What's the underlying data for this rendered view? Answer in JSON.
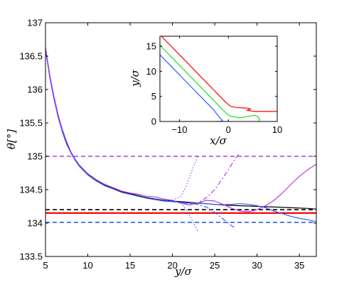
{
  "chart_data": [
    {
      "type": "line",
      "panel": "main",
      "xlabel": "y/σ",
      "ylabel": "θ[°]",
      "xlim": [
        5,
        37
      ],
      "ylim": [
        133.5,
        137
      ],
      "xticks": [
        "5",
        "10",
        "15",
        "20",
        "25",
        "30",
        "35"
      ],
      "yticks": [
        "133.5",
        "134",
        "134.5",
        "135",
        "135.5",
        "136",
        "136.5",
        "137"
      ],
      "grid": false,
      "hlines": [
        {
          "y": 135.0,
          "color": "#b23fe0",
          "dash": "dashed"
        },
        {
          "y": 134.2,
          "color": "#000000",
          "dash": "dashed"
        },
        {
          "y": 134.15,
          "color": "#ff0000",
          "dash": "solid"
        },
        {
          "y": 134.01,
          "color": "#2f5cff",
          "dash": "dashed"
        }
      ],
      "series": [
        {
          "color": "#000000",
          "dash": "solid",
          "x": [
            5,
            5.5,
            6,
            6.5,
            7,
            7.5,
            8,
            8.5,
            9,
            10,
            11,
            12,
            13,
            14,
            15,
            16,
            17,
            18,
            19,
            20,
            21,
            22,
            23,
            24,
            25,
            26,
            27,
            28,
            29,
            30,
            31,
            32,
            33,
            34,
            35,
            36,
            37
          ],
          "y": [
            136.62,
            136.2,
            135.88,
            135.6,
            135.38,
            135.2,
            135.06,
            134.95,
            134.86,
            134.73,
            134.64,
            134.57,
            134.52,
            134.47,
            134.44,
            134.41,
            134.38,
            134.36,
            134.34,
            134.33,
            134.32,
            134.31,
            134.3,
            134.29,
            134.28,
            134.27,
            134.265,
            134.26,
            134.255,
            134.25,
            134.245,
            134.24,
            134.235,
            134.23,
            134.225,
            134.22,
            134.21
          ]
        },
        {
          "color": "#2f5cff",
          "dash": "solid",
          "x": [
            5,
            5.5,
            6,
            6.5,
            7,
            7.5,
            8,
            8.5,
            9,
            10,
            11,
            12,
            13,
            14,
            15,
            16,
            17,
            18,
            19,
            20,
            21,
            22,
            23,
            24,
            25,
            26,
            27,
            28,
            29,
            30,
            31,
            32,
            33,
            34,
            35,
            36,
            37
          ],
          "y": [
            136.6,
            136.18,
            135.86,
            135.58,
            135.36,
            135.18,
            135.05,
            134.94,
            134.85,
            134.72,
            134.63,
            134.56,
            134.51,
            134.46,
            134.43,
            134.4,
            134.37,
            134.35,
            134.33,
            134.32,
            134.31,
            134.3,
            134.295,
            134.29,
            134.28,
            134.275,
            134.28,
            134.29,
            134.28,
            134.26,
            134.23,
            134.18,
            134.14,
            134.1,
            134.07,
            134.05,
            134.02
          ]
        },
        {
          "color": "#b23fe0",
          "dash": "solid",
          "x": [
            5,
            5.5,
            6,
            6.5,
            7,
            7.5,
            8,
            8.5,
            9,
            10,
            11,
            12,
            13,
            14,
            15,
            16,
            17,
            18,
            19,
            20,
            21,
            22,
            23,
            24,
            25,
            26,
            27,
            28,
            29,
            30,
            31,
            32,
            33,
            34,
            35,
            36,
            37
          ],
          "y": [
            136.64,
            136.22,
            135.9,
            135.62,
            135.4,
            135.22,
            135.07,
            134.96,
            134.87,
            134.74,
            134.65,
            134.58,
            134.53,
            134.48,
            134.45,
            134.43,
            134.4,
            134.39,
            134.36,
            134.34,
            134.3,
            134.27,
            134.3,
            134.34,
            134.33,
            134.28,
            134.22,
            134.18,
            134.17,
            134.2,
            134.26,
            134.34,
            134.45,
            134.58,
            134.7,
            134.8,
            134.88
          ]
        },
        {
          "color": "#b23fe0",
          "dash": "dashdot",
          "x": [
            20,
            21,
            22,
            23,
            24,
            25,
            26,
            27,
            27.5,
            28
          ],
          "y": [
            134.33,
            134.3,
            134.28,
            134.3,
            134.38,
            134.5,
            134.68,
            134.88,
            134.98,
            135.05
          ]
        },
        {
          "color": "#2f5cff",
          "dash": "dashdot",
          "x": [
            20,
            21,
            22,
            23,
            24,
            25,
            26,
            27,
            27.5
          ],
          "y": [
            134.32,
            134.31,
            134.3,
            134.28,
            134.24,
            134.16,
            134.06,
            133.96,
            133.92
          ]
        },
        {
          "color": "#b23fe0",
          "dash": "dotted",
          "x": [
            18,
            19,
            20,
            21,
            21.5,
            22,
            22.5,
            23
          ],
          "y": [
            134.36,
            134.35,
            134.34,
            134.4,
            134.52,
            134.68,
            134.85,
            135.0
          ]
        },
        {
          "color": "#2f5cff",
          "dash": "dotted",
          "x": [
            18,
            19,
            20,
            21,
            21.5,
            22,
            22.5,
            23
          ],
          "y": [
            134.35,
            134.34,
            134.33,
            134.3,
            134.22,
            134.12,
            134.0,
            133.88
          ]
        }
      ]
    },
    {
      "type": "line",
      "panel": "inset",
      "xlabel": "x/σ",
      "ylabel": "y/σ",
      "xlim": [
        -14,
        10
      ],
      "ylim": [
        0,
        17
      ],
      "xticks": [
        "−10",
        "0",
        "10"
      ],
      "xtick_values": [
        -10,
        0,
        10
      ],
      "yticks": [
        "0",
        "5",
        "10",
        "15"
      ],
      "ytick_values": [
        0,
        5,
        10,
        15
      ],
      "grid": false,
      "series": [
        {
          "color": "#ff0000",
          "x": [
            -14,
            -12,
            -10,
            -8,
            -6,
            -4,
            -2,
            -0.5,
            0.5,
            1.5,
            3,
            4,
            4.6,
            3.8,
            4.6,
            5.5,
            7,
            9,
            10
          ],
          "y": [
            17.3,
            15.3,
            13.3,
            11.3,
            9.3,
            7.3,
            5.3,
            3.8,
            3.0,
            2.8,
            2.7,
            2.65,
            2.5,
            2.25,
            2.1,
            2.0,
            2.0,
            2.0,
            2.0
          ]
        },
        {
          "color": "#22dd22",
          "x": [
            -14,
            -12,
            -10,
            -8,
            -6,
            -4,
            -2,
            -0.5,
            0.5,
            1.5,
            2.5,
            3.5,
            4.5,
            5.5,
            6,
            6.4,
            6.2
          ],
          "y": [
            15.2,
            13.2,
            11.2,
            9.2,
            7.2,
            5.2,
            3.2,
            1.7,
            1.0,
            0.85,
            0.75,
            0.9,
            1.1,
            1.2,
            1.0,
            0.4,
            0.0
          ]
        },
        {
          "color": "#2f5cff",
          "x": [
            -14,
            -12,
            -10,
            -8,
            -6,
            -4,
            -3,
            -2.2,
            -1.6,
            -1.2,
            -1.4,
            -2.0,
            -2.6
          ],
          "y": [
            13.3,
            11.3,
            9.3,
            7.3,
            5.3,
            3.3,
            2.3,
            1.3,
            0.6,
            0.2,
            0.05,
            0.0,
            0.0
          ]
        }
      ]
    }
  ]
}
